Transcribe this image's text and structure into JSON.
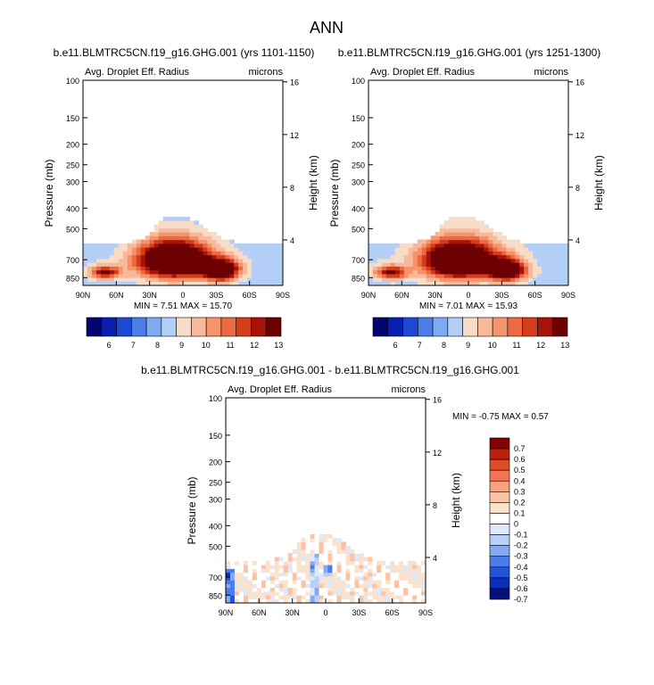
{
  "page_title": "ANN",
  "colors": {
    "scale_12": [
      "#00066e",
      "#0a1fb0",
      "#1c48d4",
      "#4a7ee6",
      "#7eaaf2",
      "#b3cff8",
      "#f7dcc8",
      "#f8b99b",
      "#f5946c",
      "#ec6a41",
      "#d53c1c",
      "#a81309",
      "#6d0000"
    ],
    "scale_diff": [
      "#04107c",
      "#0b2db7",
      "#2353d8",
      "#4c7ce8",
      "#86aaf2",
      "#b8cff8",
      "#dde9fb",
      "#ffffff",
      "#fbe2cc",
      "#f9c3a6",
      "#f6a17f",
      "#f07653",
      "#de4b27",
      "#bc1f0b",
      "#860000"
    ]
  },
  "chart_data": [
    {
      "type": "heatmap",
      "title": "b.e11.BLMTRC5CN.f19_g16.GHG.001 (yrs 1101-1150)",
      "subtitle_left": "Avg. Droplet Eff. Radius",
      "subtitle_right": "microns",
      "ylabel": "Pressure (mb)",
      "ylabel_right": "Height (km)",
      "x_ticks": [
        "90N",
        "60N",
        "30N",
        "0",
        "30S",
        "60S",
        "90S"
      ],
      "y_ticks": [
        "100",
        "150",
        "200",
        "250",
        "300",
        "400",
        "500",
        "700",
        "850"
      ],
      "y_ticks_right": [
        "16",
        "12",
        "8",
        "4"
      ],
      "ylim": [
        1000,
        100
      ],
      "y_scale": "log",
      "stats": "MIN =  7.51  MAX = 15.70",
      "colorbar_labels": [
        "6",
        "7",
        "8",
        "9",
        "10",
        "11",
        "12",
        "13"
      ],
      "colorbar_orientation": "horizontal"
    },
    {
      "type": "heatmap",
      "title": "b.e11.BLMTRC5CN.f19_g16.GHG.001 (yrs 1251-1300)",
      "subtitle_left": "Avg. Droplet Eff. Radius",
      "subtitle_right": "microns",
      "ylabel": "Pressure (mb)",
      "ylabel_right": "Height (km)",
      "x_ticks": [
        "90N",
        "60N",
        "30N",
        "0",
        "30S",
        "60S",
        "90S"
      ],
      "y_ticks": [
        "100",
        "150",
        "200",
        "250",
        "300",
        "400",
        "500",
        "700",
        "850"
      ],
      "y_ticks_right": [
        "16",
        "12",
        "8",
        "4"
      ],
      "ylim": [
        1000,
        100
      ],
      "y_scale": "log",
      "stats": "MIN =  7.01  MAX = 15.93",
      "colorbar_labels": [
        "6",
        "7",
        "8",
        "9",
        "10",
        "11",
        "12",
        "13"
      ],
      "colorbar_orientation": "horizontal"
    },
    {
      "type": "heatmap",
      "title": "b.e11.BLMTRC5CN.f19_g16.GHG.001 - b.e11.BLMTRC5CN.f19_g16.GHG.001",
      "subtitle_left": "Avg. Droplet Eff. Radius",
      "subtitle_right": "microns",
      "ylabel": "Pressure (mb)",
      "ylabel_right": "Height (km)",
      "x_ticks": [
        "90N",
        "60N",
        "30N",
        "0",
        "30S",
        "60S",
        "90S"
      ],
      "y_ticks": [
        "100",
        "150",
        "200",
        "250",
        "300",
        "400",
        "500",
        "700",
        "850"
      ],
      "y_ticks_right": [
        "16",
        "12",
        "8",
        "4"
      ],
      "ylim": [
        1000,
        100
      ],
      "y_scale": "log",
      "stats": "MIN = -0.75  MAX =  0.57",
      "colorbar_labels": [
        "0.7",
        "0.6",
        "0.5",
        "0.4",
        "0.3",
        "0.2",
        "0.1",
        "0",
        "-0.1",
        "-0.2",
        "-0.3",
        "-0.4",
        "-0.5",
        "-0.6",
        "-0.7"
      ],
      "colorbar_orientation": "vertical"
    }
  ]
}
